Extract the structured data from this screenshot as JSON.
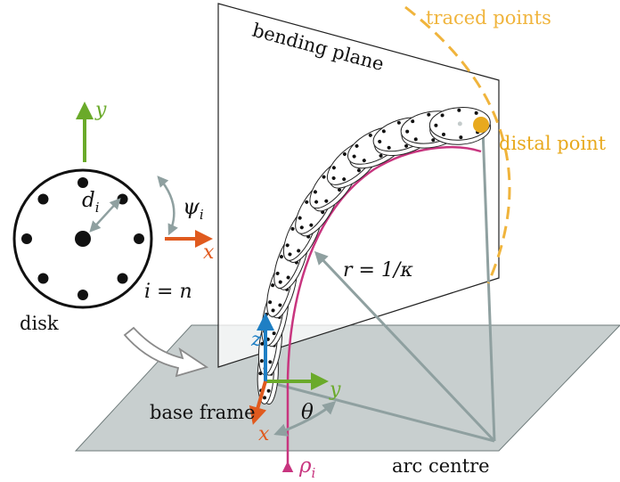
{
  "labels": {
    "traced_points": "traced points",
    "bending_plane": "bending plane",
    "distal_point": "distal point",
    "disk": "disk",
    "base_frame": "base frame",
    "arc_centre": "arc centre",
    "radius": "r = 1/κ",
    "i_eq_n": "i = n",
    "psi": "ψ",
    "psi_sub": "i",
    "d": "d",
    "d_sub": "i",
    "rho": "ρ",
    "rho_sub": "i",
    "theta": "θ",
    "disk_axis_x": "x",
    "disk_axis_y": "y",
    "base_axis_x": "x",
    "base_axis_y": "y",
    "base_axis_z": "z"
  },
  "colors": {
    "x_axis": "#e05a1e",
    "y_axis": "#6aaa2a",
    "z_axis": "#1f7fc4",
    "rho": "#c8357f",
    "traced": "#f0b43c",
    "distal": "#e8a91e",
    "plane": "#c8cfcf",
    "gray_line": "#8fa0a0",
    "text": "#111111"
  },
  "icons": {
    "insertion_arrow": "hollow-curved-arrow-icon"
  }
}
